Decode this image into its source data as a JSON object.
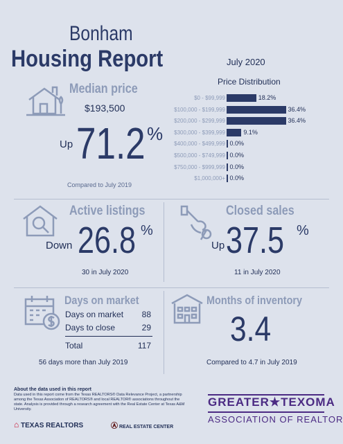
{
  "header": {
    "title_line1": "Bonham",
    "title_line2": "Housing Report",
    "date": "July 2020"
  },
  "median": {
    "label": "Median price",
    "value": "$193,500",
    "direction": "Up",
    "change": "71.2",
    "pct_symbol": "%",
    "comparison": "Compared to July 2019"
  },
  "price_distribution": {
    "title": "Price Distribution",
    "rows": [
      {
        "range": "$0 - $99,999",
        "pct": "18.2%",
        "value": 18.2
      },
      {
        "range": "$100,000 - $199,999",
        "pct": "36.4%",
        "value": 36.4
      },
      {
        "range": "$200,000 - $299,999",
        "pct": "36.4%",
        "value": 36.4
      },
      {
        "range": "$300,000 - $399,999",
        "pct": "9.1%",
        "value": 9.1
      },
      {
        "range": "$400,000 - $499,999",
        "pct": "0.0%",
        "value": 0.0
      },
      {
        "range": "$500,000 - $749,999",
        "pct": "0.0%",
        "value": 0.0
      },
      {
        "range": "$750,000 - $999,999",
        "pct": "0.0%",
        "value": 0.0
      },
      {
        "range": "$1,000,000+",
        "pct": "0.0%",
        "value": 0.0
      }
    ]
  },
  "active_listings": {
    "label": "Active listings",
    "direction": "Down",
    "change": "26.8",
    "pct_symbol": "%",
    "subtext": "30 in July 2020"
  },
  "closed_sales": {
    "label": "Closed sales",
    "direction": "Up",
    "change": "37.5",
    "pct_symbol": "%",
    "subtext": "11 in July 2020"
  },
  "days_on_market": {
    "label": "Days on market",
    "rows": [
      {
        "label": "Days on market",
        "value": "88"
      },
      {
        "label": "Days to close",
        "value": "29"
      }
    ],
    "total_label": "Total",
    "total_value": "117",
    "subtext": "56 days more than July 2019"
  },
  "months_inventory": {
    "label": "Months of inventory",
    "value": "3.4",
    "subtext": "Compared to 4.7 in July 2019"
  },
  "footer": {
    "about_title": "About the data used in this report",
    "about_body": "Data used in this report come from the Texas REALTORS® Data Relevance Project, a partnership among the Texas Association of REALTORS® and local REALTOR® associations throughout the state. Analysis is provided through a research agreement with the Real Estate Center at Texas A&M University.",
    "texas_realtors": "TEXAS REALTORS",
    "real_estate_center": "REAL ESTATE CENTER",
    "assoc_line1": "GREATER★TEXOMA",
    "assoc_line2": "ASSOCIATION OF REALTORS"
  },
  "colors": {
    "background": "#dde2ec",
    "navy": "#2b3a67",
    "muted": "#8d9bb8",
    "purple": "#4b2a83"
  },
  "icons": [
    "house-icon",
    "magnifier-house-icon",
    "key-hand-icon",
    "calendar-dollar-icon",
    "building-icon"
  ]
}
